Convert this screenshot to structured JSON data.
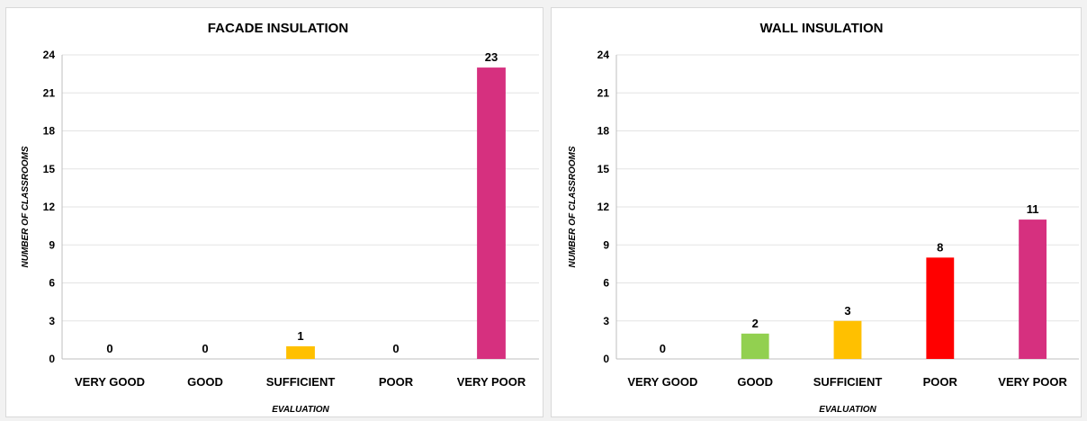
{
  "chart_data": [
    {
      "type": "bar",
      "title": "FACADE INSULATION",
      "xlabel": "EVALUATION",
      "ylabel": "NUMBER OF CLASSROOMS",
      "ylim": [
        0,
        24
      ],
      "yticks": [
        0,
        3,
        6,
        9,
        12,
        15,
        18,
        21,
        24
      ],
      "grid": true,
      "categories": [
        "VERY GOOD",
        "GOOD",
        "SUFFICIENT",
        "POOR",
        "VERY POOR"
      ],
      "values": [
        0,
        0,
        1,
        0,
        23
      ],
      "colors": [
        "#92d050",
        "#92d050",
        "#ffc000",
        "#ff0000",
        "#d6307f"
      ]
    },
    {
      "type": "bar",
      "title": "WALL INSULATION",
      "xlabel": "EVALUATION",
      "ylabel": "NUMBER OF CLASSROOMS",
      "ylim": [
        0,
        24
      ],
      "yticks": [
        0,
        3,
        6,
        9,
        12,
        15,
        18,
        21,
        24
      ],
      "grid": true,
      "categories": [
        "VERY GOOD",
        "GOOD",
        "SUFFICIENT",
        "POOR",
        "VERY POOR"
      ],
      "values": [
        0,
        2,
        3,
        8,
        11
      ],
      "colors": [
        "#92d050",
        "#92d050",
        "#ffc000",
        "#ff0000",
        "#d6307f"
      ]
    }
  ]
}
